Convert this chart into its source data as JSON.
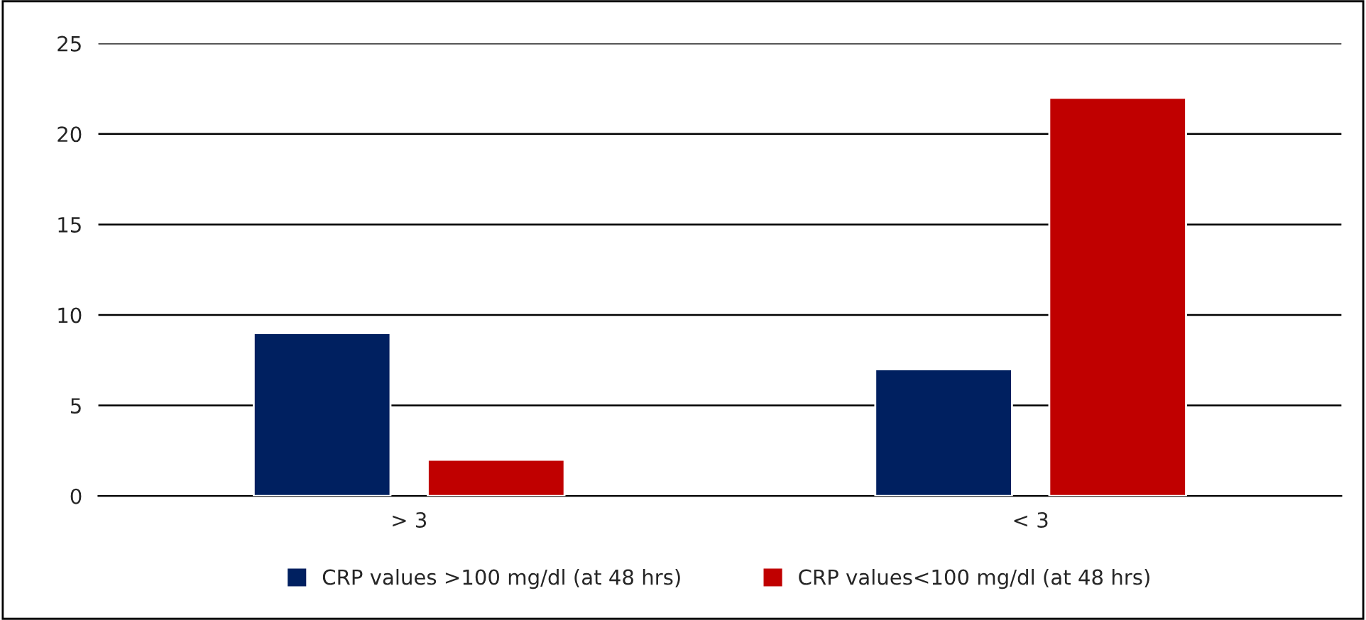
{
  "chart_data": {
    "type": "bar",
    "categories": [
      "> 3",
      "< 3"
    ],
    "series": [
      {
        "name": "CRP values >100 mg/dl (at 48 hrs)",
        "color": "#002060",
        "values": [
          9,
          7
        ]
      },
      {
        "name": "CRP values<100 mg/dl (at 48 hrs)",
        "color": "#c00000",
        "values": [
          2,
          22
        ]
      }
    ],
    "ylim": [
      0,
      25
    ],
    "yticks": [
      0,
      5,
      10,
      15,
      20,
      25
    ],
    "grid": "y",
    "legend": "bottom"
  }
}
